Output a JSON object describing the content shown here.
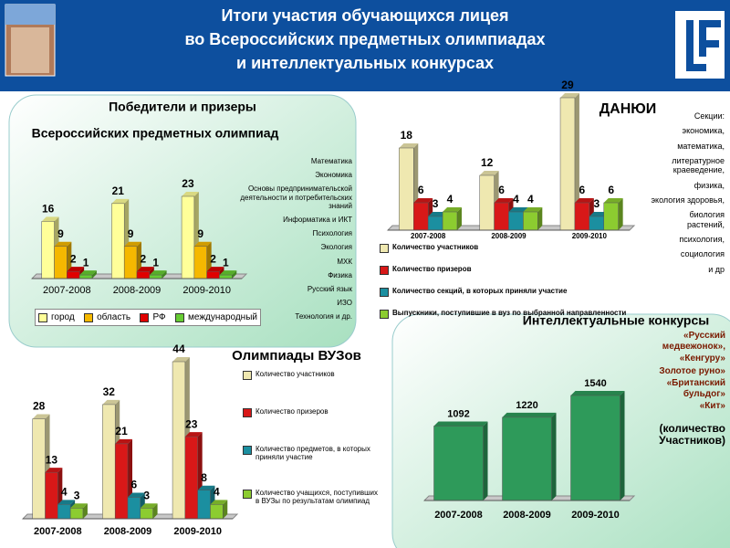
{
  "header": {
    "lines": [
      "Итоги участия обучающихся лицея",
      "во Всероссийских предметных олимпиадах",
      "и интеллектуальных конкурсах"
    ]
  },
  "chart_data": [
    {
      "type": "bar3d",
      "title": "Победители и призеры",
      "subtitle": "Всероссийских предметных олимпиад",
      "categories": [
        "2007-2008",
        "2008-2009",
        "2009-2010"
      ],
      "series": [
        {
          "name": "город",
          "color": "#ffff99",
          "values": [
            16,
            21,
            23
          ]
        },
        {
          "name": "область",
          "color": "#f5b800",
          "values": [
            9,
            9,
            9
          ]
        },
        {
          "name": "РФ",
          "color": "#e00000",
          "values": [
            2,
            2,
            2
          ]
        },
        {
          "name": "международный",
          "color": "#66cc33",
          "values": [
            1,
            1,
            1
          ]
        }
      ],
      "annotations": [
        "Математика",
        "Экономика",
        "Основы предпринимательской деятельности и потребительских знаний",
        "Информатика и ИКТ",
        "Психология",
        "Экология",
        "МХК",
        "Физика",
        "Русский язык",
        "ИЗО",
        "Технология и др."
      ]
    },
    {
      "type": "bar3d",
      "title": "ДАНЮИ",
      "categories": [
        "2007-2008",
        "2008-2009",
        "2009-2010"
      ],
      "series": [
        {
          "name": "Количество участников",
          "color": "#efe8b0",
          "values": [
            18,
            12,
            29
          ]
        },
        {
          "name": "Количество призеров",
          "color": "#d81818",
          "values": [
            6,
            6,
            6
          ]
        },
        {
          "name": "Количество секций, в которых приняли участие",
          "color": "#1b8fa0",
          "values": [
            3,
            4,
            3
          ]
        },
        {
          "name": "Выпускники, поступившие в вуз по выбранной направленности",
          "color": "#8ccc30",
          "values": [
            4,
            4,
            6
          ]
        }
      ],
      "annotations": [
        "Секции:",
        "экономика,",
        "математика,",
        "литературное краеведение,",
        "физика,",
        "экология здоровья,",
        "биология растений,",
        "психология,",
        "социология",
        "и др"
      ]
    },
    {
      "type": "bar3d",
      "title": "Олимпиады ВУЗов",
      "categories": [
        "2007-2008",
        "2008-2009",
        "2009-2010"
      ],
      "series": [
        {
          "name": "Количество участников",
          "color": "#efe8b0",
          "values": [
            28,
            32,
            44
          ]
        },
        {
          "name": "Количество призеров",
          "color": "#d81818",
          "values": [
            13,
            21,
            23
          ]
        },
        {
          "name": "Количество предметов, в которых приняли участие",
          "color": "#1b8fa0",
          "values": [
            4,
            6,
            8
          ]
        },
        {
          "name": "Количество учащихся, поступивших в ВУЗы по результатам олимпиад",
          "color": "#8ccc30",
          "values": [
            3,
            3,
            4
          ]
        }
      ]
    },
    {
      "type": "bar3d",
      "title": "Интеллектуальные конкурсы",
      "categories": [
        "2007-2008",
        "2008-2009",
        "2009-2010"
      ],
      "values": [
        1092,
        1220,
        1540
      ],
      "color": "#2e9a5a",
      "annotations": [
        "«Русский медвежонок»,",
        "«Кенгуру»",
        "Золотое руно»",
        "«Британский бульдог»",
        "«Кит»",
        "(количество Участников)"
      ]
    }
  ]
}
